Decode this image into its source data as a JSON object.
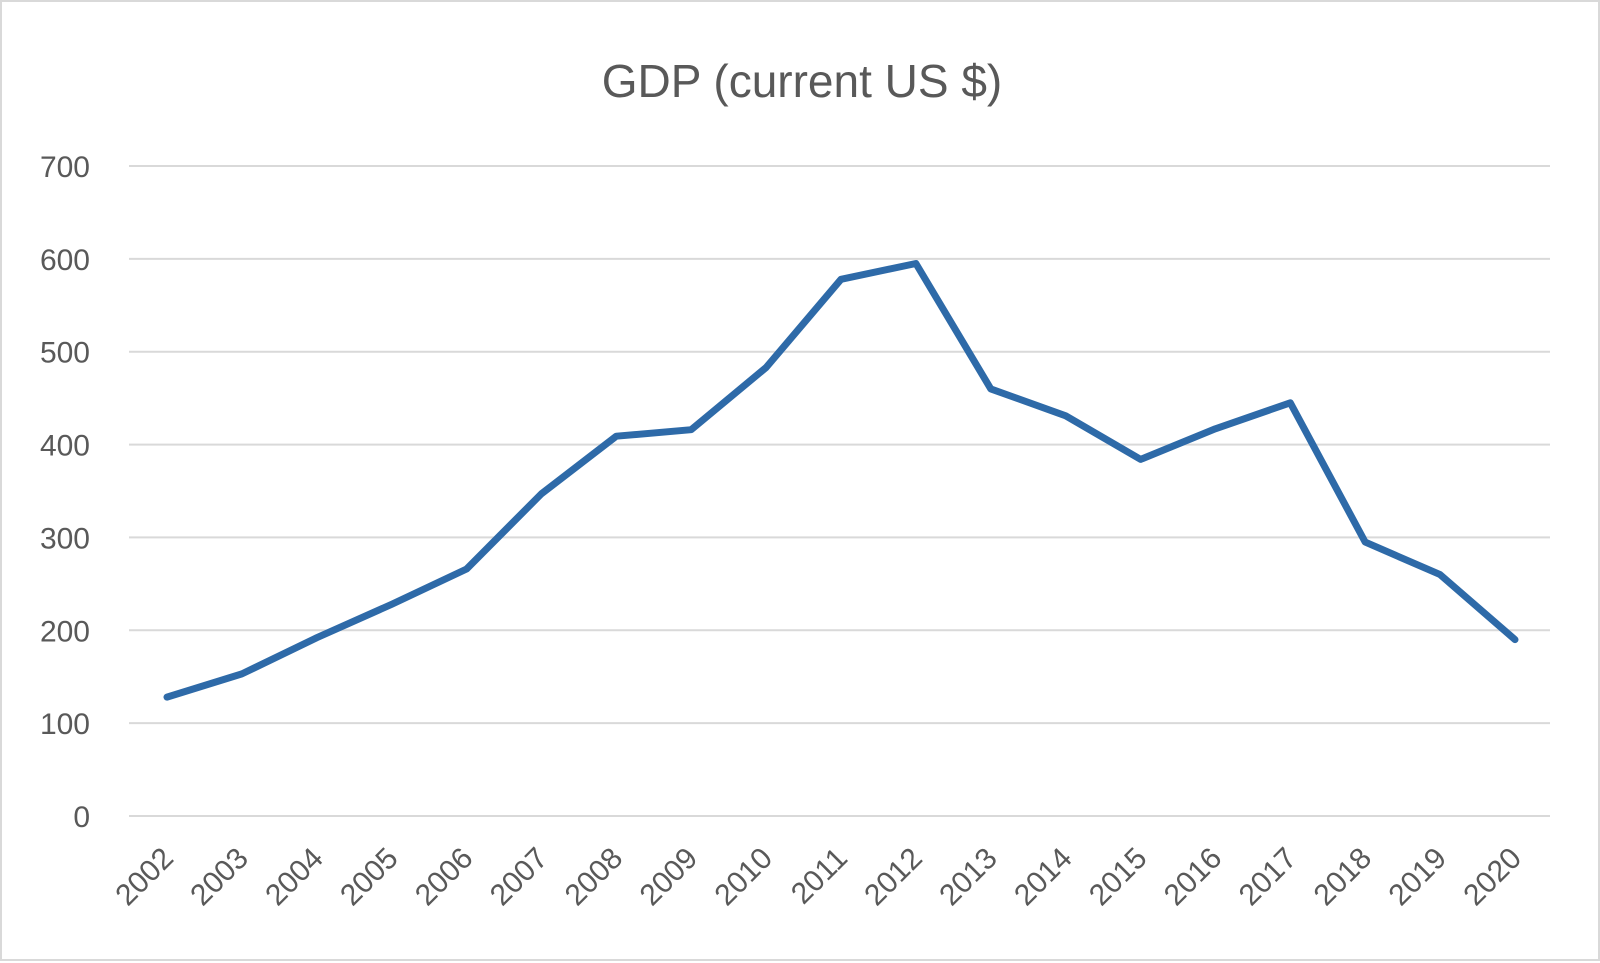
{
  "chart_data": {
    "type": "line",
    "title": "GDP (current US $)",
    "xlabel": "",
    "ylabel": "",
    "categories": [
      "2002",
      "2003",
      "2004",
      "2005",
      "2006",
      "2007",
      "2008",
      "2009",
      "2010",
      "2011",
      "2012",
      "2013",
      "2014",
      "2015",
      "2016",
      "2017",
      "2018",
      "2019",
      "2020"
    ],
    "series": [
      {
        "name": "GDP (current US $)",
        "color": "#2e6aa8",
        "values": [
          128,
          153,
          192,
          228,
          266,
          347,
          409,
          416,
          483,
          578,
          595,
          460,
          431,
          384,
          417,
          445,
          295,
          260,
          190
        ]
      }
    ],
    "ylim": [
      0,
      700
    ],
    "yticks": [
      "0",
      "100",
      "200",
      "300",
      "400",
      "500",
      "600",
      "700"
    ],
    "grid": true,
    "legend": "none",
    "gridline_color": "#d9d9d9",
    "text_color": "#595959"
  }
}
